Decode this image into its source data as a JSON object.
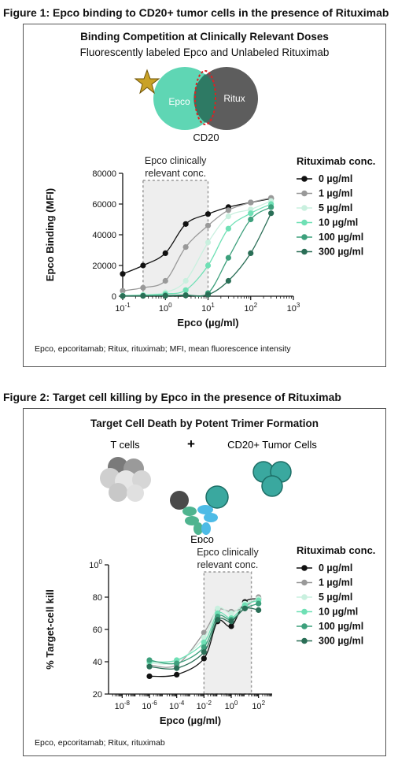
{
  "figure1": {
    "heading": "Figure 1: Epco binding to CD20+ tumor cells in the presence of Rituximab",
    "panel_title": "Binding Competition at Clinically Relevant Doses",
    "panel_subtitle": "Fluorescently labeled Epco and Unlabeled Rituximab",
    "venn": {
      "left_label": "Epco",
      "right_label": "Ritux",
      "caption": "CD20"
    },
    "footnote": "Epco, epcoritamab; Ritux, rituximab; MFI, mean fluorescence intensity"
  },
  "figure2": {
    "heading": "Figure 2: Target cell killing by Epco in the presence of Rituximab",
    "panel_title": "Target Cell Death by Potent Trimer Formation",
    "tcells_label": "T cells",
    "plus_sign": "+",
    "tumor_label": "CD20+ Tumor Cells",
    "epco_label": "Epco",
    "footnote": "Epco, epcoritamab; Ritux, rituximab"
  },
  "chart_data": [
    {
      "type": "line",
      "xlabel": "Epco (µg/ml)",
      "ylabel": "Epco Binding (MFI)",
      "xscale": "log",
      "xlim": [
        0.1,
        1000
      ],
      "ylim": [
        0,
        80000
      ],
      "yticks": [
        "0",
        "20000",
        "40000",
        "60000",
        "80000"
      ],
      "xticks": [
        "10-1",
        "100",
        "101",
        "102",
        "103"
      ],
      "shaded_region": {
        "x": [
          0.3,
          10
        ],
        "label_line1": "Epco clinically",
        "label_line2": "relevant conc."
      },
      "legend_title": "Rituximab conc.",
      "legend_position": "right",
      "x": [
        0.1,
        0.3,
        1,
        3,
        10,
        30,
        100,
        300
      ],
      "series": [
        {
          "name": "0 µg/ml",
          "color": "#111111",
          "values": [
            14500,
            20000,
            28000,
            47000,
            53500,
            58000,
            61000,
            63500
          ]
        },
        {
          "name": "1 µg/ml",
          "color": "#999999",
          "values": [
            3500,
            5500,
            10000,
            32000,
            46000,
            56000,
            61000,
            64000
          ]
        },
        {
          "name": "5 µg/ml",
          "color": "#c9f0df",
          "values": [
            500,
            1000,
            2500,
            10000,
            35000,
            52000,
            56500,
            62000
          ]
        },
        {
          "name": "10 µg/ml",
          "color": "#6fe0b5",
          "values": [
            300,
            600,
            1500,
            4000,
            20000,
            44000,
            54000,
            60000
          ]
        },
        {
          "name": "100 µg/ml",
          "color": "#3da07c",
          "values": [
            200,
            300,
            500,
            800,
            2000,
            25000,
            50000,
            58000
          ]
        },
        {
          "name": "300 µg/ml",
          "color": "#2a6e56",
          "values": [
            100,
            200,
            300,
            500,
            1000,
            10000,
            28000,
            54000
          ]
        }
      ]
    },
    {
      "type": "line",
      "xlabel": "Epco (µg/ml)",
      "ylabel": "% Target-cell kill",
      "xscale": "log",
      "xlim": [
        1e-09,
        1000
      ],
      "ylim": [
        20,
        100
      ],
      "yticks": [
        "20",
        "40",
        "60",
        "80",
        "100"
      ],
      "xticks": [
        "10-8",
        "10-6",
        "10-4",
        "10-2",
        "100",
        "102"
      ],
      "shaded_region": {
        "x": [
          0.01,
          30
        ],
        "label_line1": "Epco clinically",
        "label_line2": "relevant conc."
      },
      "legend_title": "Rituximab conc.",
      "legend_position": "right",
      "x": [
        1e-06,
        0.0001,
        0.01,
        0.1,
        1,
        10,
        100
      ],
      "series": [
        {
          "name": "0 µg/ml",
          "color": "#111111",
          "values": [
            31,
            32,
            42,
            65,
            62,
            77,
            79
          ]
        },
        {
          "name": "1 µg/ml",
          "color": "#999999",
          "values": [
            38,
            38,
            58,
            72,
            71,
            74,
            80
          ]
        },
        {
          "name": "5 µg/ml",
          "color": "#c9f0df",
          "values": [
            39,
            40,
            55,
            73,
            70,
            76,
            79
          ]
        },
        {
          "name": "10 µg/ml",
          "color": "#6fe0b5",
          "values": [
            40,
            41,
            52,
            70,
            67,
            75,
            78
          ]
        },
        {
          "name": "100 µg/ml",
          "color": "#3da07c",
          "values": [
            41,
            39,
            49,
            68,
            66,
            73,
            76
          ]
        },
        {
          "name": "300 µg/ml",
          "color": "#2a6e56",
          "values": [
            37,
            36,
            46,
            66,
            65,
            73,
            72
          ]
        }
      ]
    }
  ]
}
